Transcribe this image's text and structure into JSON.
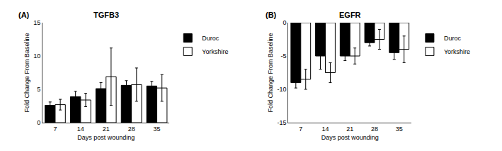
{
  "chart_data": [
    {
      "type": "bar",
      "title": "TGFB3",
      "annotations": [
        "(A)"
      ],
      "x_label": "Days post wounding",
      "y_label": "Fold Change From Baseline",
      "categories": [
        7,
        14,
        21,
        28,
        35
      ],
      "series": [
        {
          "name": "Duroc",
          "color": "#000000",
          "values": [
            2.6,
            3.9,
            5.1,
            5.6,
            5.5
          ],
          "errors": [
            0.5,
            0.8,
            0.9,
            0.7,
            0.7
          ]
        },
        {
          "name": "Yorkshire",
          "color": "#ffffff",
          "values": [
            2.7,
            3.4,
            6.9,
            5.7,
            5.2
          ],
          "errors": [
            0.8,
            1.0,
            4.3,
            2.5,
            2.0
          ]
        }
      ],
      "ylim": [
        0,
        15
      ],
      "yticks": [
        0,
        5,
        10,
        15
      ],
      "grid": false,
      "legend": "upper right"
    },
    {
      "type": "bar",
      "title": "EGFR",
      "annotations": [
        "(B)"
      ],
      "x_label": "Days post wounding",
      "y_label": "Fold Change From Baseline",
      "categories": [
        7,
        14,
        21,
        28,
        35
      ],
      "series": [
        {
          "name": "Duroc",
          "color": "#000000",
          "values": [
            -9.0,
            -5.0,
            -5.0,
            -3.0,
            -4.5
          ],
          "errors": [
            0.8,
            2.0,
            0.7,
            0.5,
            1.0
          ]
        },
        {
          "name": "Yorkshire",
          "color": "#ffffff",
          "values": [
            -8.5,
            -7.5,
            -5.0,
            -2.5,
            -4.0
          ],
          "errors": [
            1.5,
            1.5,
            1.2,
            1.5,
            2.0
          ]
        }
      ],
      "ylim": [
        -15,
        0
      ],
      "yticks": [
        -15,
        -10,
        -5,
        0
      ],
      "grid": false,
      "legend": "upper right"
    }
  ]
}
